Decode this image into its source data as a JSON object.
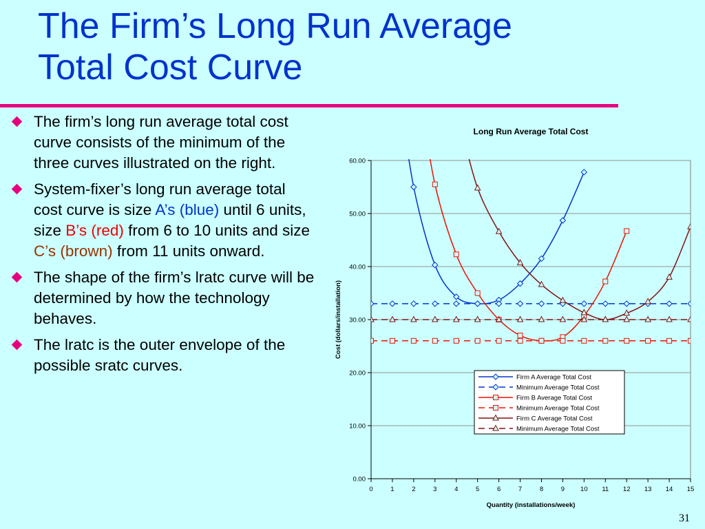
{
  "slide": {
    "title_line1": "The Firm’s Long Run Average",
    "title_line2": "Total Cost Curve",
    "slide_number": "31",
    "bullets": [
      {
        "parts": [
          {
            "text": "The firm’s long run average total cost curve consists of the minimum of the three curves illustrated on the right.",
            "color": ""
          }
        ]
      },
      {
        "parts": [
          {
            "text": "System-fixer’s long run average total cost curve is size ",
            "color": ""
          },
          {
            "text": "A’s (blue)",
            "color": "blue"
          },
          {
            "text": " until 6 units, size ",
            "color": ""
          },
          {
            "text": "B’s (red)",
            "color": "red"
          },
          {
            "text": " from 6 to 10 units and size ",
            "color": ""
          },
          {
            "text": "C’s (brown)",
            "color": "brown"
          },
          {
            "text": " from 11 units onward.",
            "color": ""
          }
        ]
      },
      {
        "parts": [
          {
            "text": "The shape of the firm’s lratc curve will be determined by how the technology behaves.",
            "color": ""
          }
        ]
      },
      {
        "parts": [
          {
            "text": "The lratc is the outer envelope of the possible sratc curves.",
            "color": ""
          }
        ]
      }
    ]
  },
  "colors": {
    "background": "#ccffff",
    "title": "#0033cc",
    "accent": "#e6007e",
    "blue": "#0033cc",
    "red": "#ee0000",
    "brown": "#993300",
    "firmA": "#0033cc",
    "firmB": "#ee1100",
    "firmC": "#801010"
  },
  "chart_data": {
    "type": "line",
    "title": "Long Run Average Total Cost",
    "xlabel": "Quantity (installations/week)",
    "ylabel": "Cost (dollars/installation)",
    "xlim": [
      0,
      15
    ],
    "ylim": [
      0,
      60
    ],
    "xticks": [
      "0",
      "1",
      "2",
      "3",
      "4",
      "5",
      "6",
      "7",
      "8",
      "9",
      "10",
      "11",
      "12",
      "13",
      "14",
      "15"
    ],
    "yticks": [
      "0.00",
      "10.00",
      "20.00",
      "30.00",
      "40.00",
      "50.00",
      "60.00"
    ],
    "grid": true,
    "legend_position": "bottom-right",
    "series": [
      {
        "name": "Firm A Average Total Cost",
        "color": "#0033cc",
        "marker": "diamond",
        "dashed": false,
        "x": [
          2,
          3,
          4,
          5,
          6,
          7,
          8,
          9,
          10
        ],
        "y": [
          55,
          40.3,
          34.3,
          33,
          33.7,
          36.8,
          41.5,
          48.7,
          57.8
        ]
      },
      {
        "name": "Minimum Average Total Cost",
        "color": "#0033cc",
        "marker": "diamond",
        "dashed": true,
        "x": [
          0,
          1,
          2,
          3,
          4,
          5,
          6,
          7,
          8,
          9,
          10,
          11,
          12,
          13,
          14,
          15
        ],
        "y": [
          33,
          33,
          33,
          33,
          33,
          33,
          33,
          33,
          33,
          33,
          33,
          33,
          33,
          33,
          33,
          33
        ]
      },
      {
        "name": "Firm B Average Total Cost",
        "color": "#ee1100",
        "marker": "square",
        "dashed": false,
        "x": [
          3,
          4,
          5,
          6,
          7,
          8,
          9,
          10,
          11,
          12
        ],
        "y": [
          55.5,
          42.3,
          35,
          30,
          27,
          26,
          26.7,
          30.7,
          37.2,
          46.7
        ]
      },
      {
        "name": "Minimum Average Total Cost",
        "color": "#ee1100",
        "marker": "square",
        "dashed": true,
        "x": [
          0,
          1,
          2,
          3,
          4,
          5,
          6,
          7,
          8,
          9,
          10,
          11,
          12,
          13,
          14,
          15
        ],
        "y": [
          26,
          26,
          26,
          26,
          26,
          26,
          26,
          26,
          26,
          26,
          26,
          26,
          26,
          26,
          26,
          26
        ]
      },
      {
        "name": "Firm C Average Total Cost",
        "color": "#801010",
        "marker": "triangle",
        "dashed": false,
        "x": [
          5,
          6,
          7,
          8,
          9,
          10,
          11,
          12,
          13,
          14,
          15
        ],
        "y": [
          54.8,
          46.6,
          40.7,
          36.6,
          33.6,
          31.3,
          30,
          31.2,
          33.4,
          38,
          47.5
        ]
      },
      {
        "name": "Minimum Average Total Cost",
        "color": "#801010",
        "marker": "triangle",
        "dashed": true,
        "x": [
          0,
          1,
          2,
          3,
          4,
          5,
          6,
          7,
          8,
          9,
          10,
          11,
          12,
          13,
          14,
          15
        ],
        "y": [
          30,
          30,
          30,
          30,
          30,
          30,
          30,
          30,
          30,
          30,
          30,
          30,
          30,
          30,
          30,
          30
        ]
      }
    ]
  }
}
